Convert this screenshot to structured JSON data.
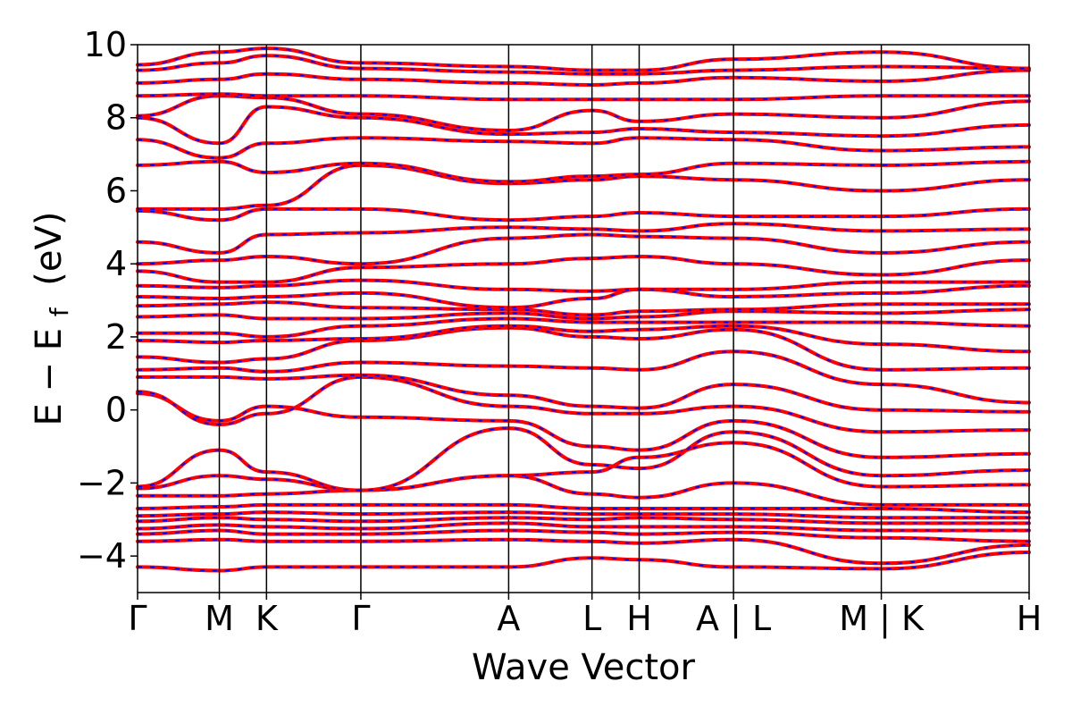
{
  "chart_data": {
    "type": "line",
    "title": "",
    "xlabel": "Wave Vector",
    "ylabel": "E − E",
    "ylabel_sub": "f",
    "ylabel_unit": "(eV)",
    "ylim": [
      -5,
      10
    ],
    "yticks": [
      -4,
      -2,
      0,
      2,
      4,
      6,
      8,
      10
    ],
    "ytick_labels": [
      "−4",
      "−2",
      "0",
      "2",
      "4",
      "6",
      "8",
      "10"
    ],
    "kpath_labels": [
      "Γ",
      "M",
      "K",
      "Γ",
      "A",
      "L",
      "H",
      "A | L",
      "M | K",
      "H"
    ],
    "kpath_positions": [
      0,
      0.52,
      0.82,
      1.42,
      2.36,
      2.89,
      3.19,
      3.79,
      4.73,
      5.67
    ],
    "grid": false,
    "legend": "none",
    "series": [
      {
        "line_color": "#ff0000",
        "dash_color": "#0000ff",
        "style": "solid red over dashed blue"
      }
    ],
    "bands": [
      {
        "y": [
          -4.3,
          -4.4,
          -4.3,
          -4.3,
          -4.3,
          -4.05,
          -4.1,
          -4.3,
          -4.35,
          -3.9
        ]
      },
      {
        "y": [
          -3.6,
          -3.55,
          -3.6,
          -3.6,
          -3.55,
          -3.6,
          -3.65,
          -3.55,
          -4.2,
          -3.7
        ]
      },
      {
        "y": [
          -3.4,
          -3.3,
          -3.4,
          -3.4,
          -3.3,
          -3.35,
          -3.4,
          -3.35,
          -3.5,
          -3.6
        ]
      },
      {
        "y": [
          -3.25,
          -3.15,
          -3.2,
          -3.25,
          -3.1,
          -3.2,
          -3.2,
          -3.2,
          -3.3,
          -3.3
        ]
      },
      {
        "y": [
          -3.05,
          -2.95,
          -3.0,
          -3.05,
          -2.95,
          -3.0,
          -2.95,
          -3.0,
          -3.1,
          -3.1
        ]
      },
      {
        "y": [
          -2.9,
          -2.85,
          -2.8,
          -2.85,
          -2.8,
          -2.85,
          -2.85,
          -2.85,
          -2.95,
          -2.95
        ]
      },
      {
        "y": [
          -2.7,
          -2.65,
          -2.6,
          -2.6,
          -2.6,
          -2.7,
          -2.7,
          -2.7,
          -2.7,
          -2.8
        ]
      },
      {
        "y": [
          -2.35,
          -2.35,
          -2.3,
          -2.2,
          -1.8,
          -2.3,
          -2.4,
          -2.0,
          -2.6,
          -2.6
        ]
      },
      {
        "y": [
          -2.15,
          -1.8,
          -1.9,
          -2.2,
          -1.8,
          -1.7,
          -1.3,
          -0.9,
          -2.1,
          -2.05
        ]
      },
      {
        "y": [
          -2.1,
          -1.1,
          -1.7,
          -2.2,
          -0.5,
          -1.5,
          -1.6,
          -0.6,
          -1.8,
          -1.65
        ]
      },
      {
        "y": [
          0.45,
          -0.3,
          0.1,
          -0.2,
          -0.3,
          -1.0,
          -1.1,
          -0.3,
          -1.3,
          -1.2
        ]
      },
      {
        "y": [
          0.5,
          -0.4,
          -0.1,
          0.9,
          0.1,
          -0.1,
          -0.1,
          0.1,
          -0.6,
          -0.55
        ]
      },
      {
        "y": [
          0.9,
          0.9,
          0.85,
          0.95,
          0.4,
          0.1,
          0.05,
          0.7,
          0.0,
          -0.05
        ]
      },
      {
        "y": [
          1.1,
          1.15,
          1.05,
          1.3,
          1.2,
          1.15,
          1.1,
          1.6,
          0.7,
          0.2
        ]
      },
      {
        "y": [
          1.45,
          1.3,
          1.4,
          1.9,
          2.25,
          2.0,
          1.95,
          2.2,
          1.1,
          1.15
        ]
      },
      {
        "y": [
          1.9,
          1.85,
          1.9,
          1.95,
          2.3,
          2.15,
          2.2,
          2.3,
          1.8,
          1.6
        ]
      },
      {
        "y": [
          2.1,
          2.1,
          2.0,
          2.3,
          2.5,
          2.4,
          2.4,
          2.4,
          2.4,
          2.3
        ]
      },
      {
        "y": [
          2.55,
          2.6,
          2.5,
          2.5,
          2.65,
          2.5,
          2.55,
          2.7,
          2.65,
          2.75
        ]
      },
      {
        "y": [
          2.85,
          2.9,
          2.95,
          2.8,
          2.75,
          2.6,
          2.7,
          2.75,
          2.9,
          2.9
        ]
      },
      {
        "y": [
          3.1,
          3.05,
          3.1,
          3.2,
          2.8,
          3.05,
          3.3,
          3.1,
          3.2,
          3.4
        ]
      },
      {
        "y": [
          3.4,
          3.35,
          3.4,
          3.55,
          3.3,
          3.25,
          3.3,
          3.3,
          3.5,
          3.5
        ]
      },
      {
        "y": [
          3.8,
          3.5,
          3.5,
          3.9,
          4.0,
          4.15,
          4.2,
          4.0,
          3.7,
          4.1
        ]
      },
      {
        "y": [
          4.0,
          4.1,
          4.2,
          4.0,
          4.7,
          4.8,
          4.75,
          4.7,
          4.3,
          4.6
        ]
      },
      {
        "y": [
          4.6,
          4.3,
          4.8,
          4.85,
          5.0,
          4.95,
          4.9,
          5.1,
          4.9,
          4.95
        ]
      },
      {
        "y": [
          5.45,
          5.2,
          5.5,
          5.5,
          5.2,
          5.3,
          5.4,
          5.3,
          5.3,
          5.5
        ]
      },
      {
        "y": [
          5.5,
          5.5,
          5.6,
          6.7,
          6.2,
          6.3,
          6.4,
          6.3,
          6.0,
          6.3
        ]
      },
      {
        "y": [
          6.7,
          6.8,
          6.5,
          6.75,
          6.25,
          6.4,
          6.45,
          6.75,
          6.7,
          6.8
        ]
      },
      {
        "y": [
          7.4,
          6.9,
          7.3,
          7.45,
          7.35,
          7.3,
          7.45,
          7.4,
          7.1,
          7.2
        ]
      },
      {
        "y": [
          8.0,
          7.3,
          8.3,
          8.0,
          7.55,
          7.6,
          7.7,
          7.6,
          7.5,
          7.8
        ]
      },
      {
        "y": [
          8.05,
          8.6,
          8.55,
          8.1,
          7.65,
          8.2,
          7.9,
          8.1,
          8.0,
          8.45
        ]
      },
      {
        "y": [
          8.6,
          8.65,
          8.6,
          8.6,
          8.5,
          8.5,
          8.5,
          8.5,
          8.6,
          8.6
        ]
      },
      {
        "y": [
          8.95,
          9.05,
          9.2,
          9.05,
          8.95,
          8.9,
          8.95,
          9.1,
          9.0,
          9.3
        ]
      },
      {
        "y": [
          9.3,
          9.5,
          9.7,
          9.35,
          9.25,
          9.2,
          9.2,
          9.3,
          9.4,
          9.35
        ]
      },
      {
        "y": [
          9.45,
          9.8,
          9.9,
          9.5,
          9.4,
          9.3,
          9.3,
          9.6,
          9.8,
          9.35
        ]
      }
    ]
  }
}
